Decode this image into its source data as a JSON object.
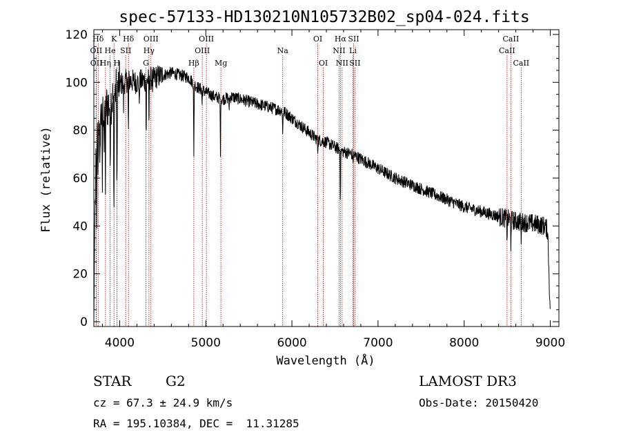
{
  "chart_data": {
    "type": "line",
    "title": "spec-57133-HD130210N105732B02_sp04-024.fits",
    "xlabel": "Wavelength (Å)",
    "ylabel": "Flux (relative)",
    "xlim": [
      3700,
      9100
    ],
    "ylim": [
      -2,
      122
    ],
    "xticks": [
      4000,
      5000,
      6000,
      7000,
      8000,
      9000
    ],
    "yticks": [
      0,
      20,
      40,
      60,
      80,
      100,
      120
    ],
    "continuum": [
      [
        3700,
        0
      ],
      [
        3710,
        40
      ],
      [
        3730,
        72
      ],
      [
        3760,
        84
      ],
      [
        3800,
        88
      ],
      [
        3850,
        90
      ],
      [
        3900,
        92
      ],
      [
        3950,
        96
      ],
      [
        4000,
        99
      ],
      [
        4050,
        100
      ],
      [
        4100,
        101
      ],
      [
        4200,
        100
      ],
      [
        4300,
        101
      ],
      [
        4400,
        102
      ],
      [
        4500,
        103
      ],
      [
        4600,
        104
      ],
      [
        4700,
        103
      ],
      [
        4800,
        102
      ],
      [
        4900,
        98
      ],
      [
        5000,
        96
      ],
      [
        5100,
        94
      ],
      [
        5200,
        93
      ],
      [
        5300,
        94
      ],
      [
        5400,
        93
      ],
      [
        5500,
        92
      ],
      [
        5600,
        91
      ],
      [
        5700,
        90
      ],
      [
        5800,
        89
      ],
      [
        5900,
        88
      ],
      [
        6000,
        85
      ],
      [
        6100,
        82
      ],
      [
        6200,
        79
      ],
      [
        6300,
        76
      ],
      [
        6400,
        75
      ],
      [
        6500,
        73
      ],
      [
        6600,
        71
      ],
      [
        6700,
        70
      ],
      [
        6800,
        68
      ],
      [
        7000,
        64
      ],
      [
        7200,
        60
      ],
      [
        7400,
        57
      ],
      [
        7600,
        54
      ],
      [
        7800,
        51
      ],
      [
        8000,
        48
      ],
      [
        8200,
        46
      ],
      [
        8400,
        44
      ],
      [
        8600,
        42
      ],
      [
        8800,
        41
      ],
      [
        8940,
        40
      ],
      [
        8970,
        38
      ],
      [
        9000,
        3
      ]
    ],
    "absorption_features": [
      [
        3734,
        30
      ],
      [
        3750,
        20
      ],
      [
        3770,
        28
      ],
      [
        3798,
        35
      ],
      [
        3820,
        18
      ],
      [
        3835,
        35
      ],
      [
        3889,
        25
      ],
      [
        3933,
        55
      ],
      [
        3968,
        50
      ],
      [
        4045,
        10
      ],
      [
        4101,
        22
      ],
      [
        4226,
        10
      ],
      [
        4308,
        25
      ],
      [
        4340,
        20
      ],
      [
        4384,
        8
      ],
      [
        4861,
        32
      ],
      [
        4957,
        6
      ],
      [
        5170,
        22
      ],
      [
        5270,
        6
      ],
      [
        5893,
        10
      ],
      [
        6300,
        5
      ],
      [
        6563,
        20
      ],
      [
        6708,
        4
      ],
      [
        8498,
        8
      ],
      [
        8542,
        10
      ],
      [
        8662,
        9
      ]
    ],
    "noise_level": 2.5,
    "spectral_lines": [
      {
        "label": "Hδ",
        "row": 0,
        "x": 3750
      },
      {
        "label": "K",
        "row": 0,
        "x": 3934
      },
      {
        "label": "Hδ",
        "row": 0,
        "x": 4102
      },
      {
        "label": "OIII",
        "row": 0,
        "x": 4363
      },
      {
        "label": "OIII",
        "row": 0,
        "x": 5007
      },
      {
        "label": "OI",
        "row": 0,
        "x": 6300
      },
      {
        "label": "Hα",
        "row": 0,
        "x": 6563
      },
      {
        "label": "SII",
        "row": 0,
        "x": 6716
      },
      {
        "label": "CaII",
        "row": 0,
        "x": 8542
      },
      {
        "label": "OII",
        "row": 1,
        "x": 3727
      },
      {
        "label": "He",
        "row": 1,
        "x": 3889
      },
      {
        "label": "SII",
        "row": 1,
        "x": 4070
      },
      {
        "label": "Hγ",
        "row": 1,
        "x": 4340
      },
      {
        "label": "OIII",
        "row": 1,
        "x": 4959
      },
      {
        "label": "Na",
        "row": 1,
        "x": 5893
      },
      {
        "label": "NII",
        "row": 1,
        "x": 6548
      },
      {
        "label": "Li",
        "row": 1,
        "x": 6708
      },
      {
        "label": "CaII",
        "row": 1,
        "x": 8498
      },
      {
        "label": "OII",
        "row": 2,
        "x": 3729
      },
      {
        "label": "Hη",
        "row": 2,
        "x": 3835
      },
      {
        "label": "H",
        "row": 2,
        "x": 3968
      },
      {
        "label": "G",
        "row": 2,
        "x": 4305
      },
      {
        "label": "Hβ",
        "row": 2,
        "x": 4861
      },
      {
        "label": "Mg",
        "row": 2,
        "x": 5175
      },
      {
        "label": "OI",
        "row": 2,
        "x": 6364
      },
      {
        "label": "NII",
        "row": 2,
        "x": 6583
      },
      {
        "label": "SII",
        "row": 2,
        "x": 6731
      },
      {
        "label": "CaII",
        "row": 2,
        "x": 8662
      }
    ]
  },
  "info": {
    "object_class": "STAR",
    "subclass": "G2",
    "survey": "LAMOST DR3",
    "redshift": "cz = 67.3 ± 24.9 km/s",
    "obs_date": "Obs-Date: 20150420",
    "coords": "RA = 195.10384, DEC =  11.31285"
  }
}
